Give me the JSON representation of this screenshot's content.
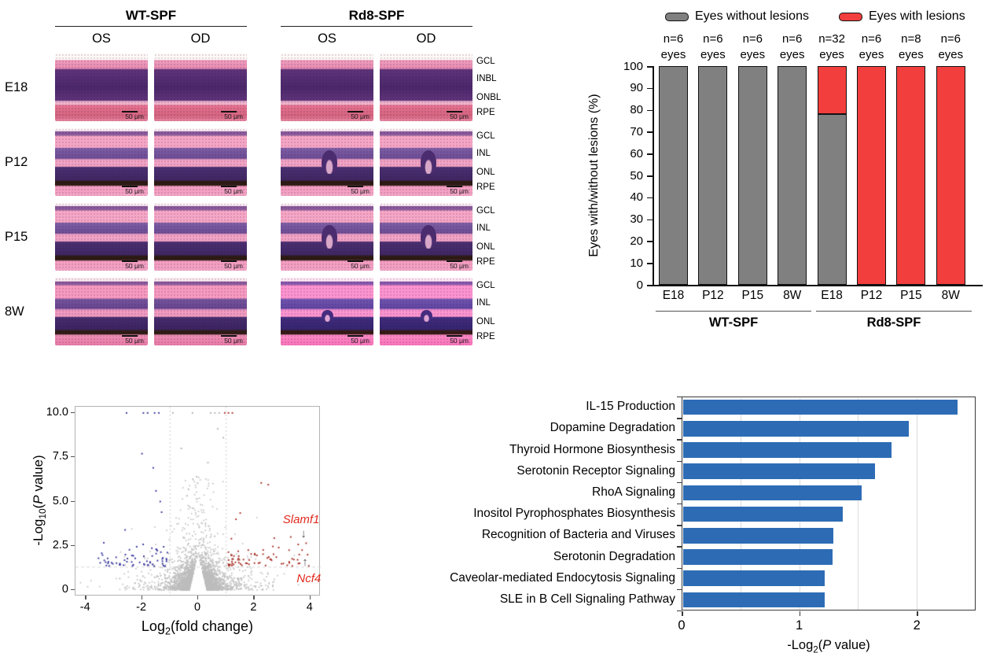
{
  "histology": {
    "groups": [
      {
        "label": "WT-SPF",
        "columns": [
          "OS",
          "OD"
        ]
      },
      {
        "label": "Rd8-SPF",
        "columns": [
          "OS",
          "OD"
        ]
      }
    ],
    "scale_bar_label": "50 μm",
    "rows": [
      {
        "label": "E18",
        "layers": [
          "GCL",
          "INBL",
          "ONBL",
          "RPE"
        ],
        "style": "e18",
        "lesions": [
          false,
          false,
          false,
          false
        ]
      },
      {
        "label": "P12",
        "layers": [
          "GCL",
          "INL",
          "ONL",
          "RPE"
        ],
        "style": "postnatal",
        "lesions": [
          false,
          false,
          true,
          true
        ]
      },
      {
        "label": "P15",
        "layers": [
          "GCL",
          "INL",
          "ONL",
          "RPE"
        ],
        "style": "postnatal",
        "lesions": [
          false,
          false,
          true,
          true
        ]
      },
      {
        "label": "8W",
        "layers": [
          "GCL",
          "INL",
          "ONL",
          "RPE"
        ],
        "style": "adult",
        "lesions": [
          false,
          false,
          true,
          true
        ]
      }
    ]
  },
  "chart_data": [
    {
      "type": "bar",
      "stacked": true,
      "title": "",
      "categories": [
        "E18",
        "P12",
        "P15",
        "8W",
        "E18",
        "P12",
        "P15",
        "8W"
      ],
      "group_labels": [
        "WT-SPF",
        "Rd8-SPF"
      ],
      "n_labels": [
        "n=6",
        "n=6",
        "n=6",
        "n=6",
        "n=32",
        "n=6",
        "n=8",
        "n=6"
      ],
      "n_unit": "eyes",
      "series": [
        {
          "name": "Eyes without lesions",
          "color": "#808080",
          "values": [
            100,
            100,
            100,
            100,
            78,
            0,
            0,
            0
          ]
        },
        {
          "name": "Eyes with lesions",
          "color": "#f33e3e",
          "values": [
            0,
            0,
            0,
            0,
            22,
            100,
            100,
            100
          ]
        }
      ],
      "ylabel": "Eyes with/without lesions (%)",
      "ylim": [
        0,
        100
      ],
      "yticks": [
        0,
        10,
        20,
        30,
        40,
        50,
        60,
        70,
        80,
        90,
        100
      ],
      "legend_position": "top"
    },
    {
      "type": "scatter",
      "subtype": "volcano",
      "xlabel_parts": {
        "pre": "Log",
        "sub": "2",
        "mid": "(fold change)",
        "it": "",
        "post": ""
      },
      "ylabel_parts": {
        "pre": "-Log",
        "sub": "10",
        "mid": "(",
        "it": "P",
        "post": " value)"
      },
      "xlim": [
        -4.37,
        4.37
      ],
      "ylim": [
        -0.35,
        10.35
      ],
      "xticks": [
        {
          "v": -4,
          "label": "-4"
        },
        {
          "v": -2,
          "label": "-2"
        },
        {
          "v": 0,
          "label": "0"
        },
        {
          "v": 2,
          "label": "2"
        },
        {
          "v": 4,
          "label": "4"
        }
      ],
      "yticks": [
        {
          "v": 0,
          "label": "0"
        },
        {
          "v": 2.5,
          "label": "2.5"
        },
        {
          "v": 5,
          "label": "5.0"
        },
        {
          "v": 7.5,
          "label": "7.5"
        },
        {
          "v": 10,
          "label": "10.0"
        }
      ],
      "threshold_lines": {
        "vertical_x": [
          -1,
          1
        ],
        "horizontal_y": 1.3
      },
      "colors": {
        "nonsignificant": "#bdbdbd",
        "down": "#32329a",
        "up": "#a52c22"
      },
      "point_counts": {
        "nonsignificant": 3600,
        "down": 62,
        "up": 68
      },
      "seed": 20,
      "down_outliers": [
        [
          -2.55,
          10
        ],
        [
          -1.95,
          10
        ],
        [
          -1.8,
          10
        ],
        [
          -1.55,
          10
        ],
        [
          -1.4,
          10
        ],
        [
          -2.0,
          7.7
        ],
        [
          -1.6,
          6.9
        ],
        [
          -1.5,
          5.6
        ],
        [
          -1.35,
          5.0
        ],
        [
          -1.3,
          4.4
        ],
        [
          -2.6,
          3.4
        ],
        [
          -3.55,
          1.8
        ]
      ],
      "up_outliers": [
        [
          0.95,
          10
        ],
        [
          1.08,
          10
        ],
        [
          1.22,
          10
        ],
        [
          2.25,
          6.05
        ],
        [
          2.5,
          5.95
        ],
        [
          1.5,
          4.35
        ],
        [
          1.35,
          4.0
        ],
        [
          3.3,
          3.0
        ],
        [
          3.85,
          2.65
        ],
        [
          3.9,
          2.0
        ]
      ],
      "gray_outliers": [
        [
          -0.9,
          10
        ],
        [
          -0.2,
          10
        ],
        [
          0.45,
          10
        ],
        [
          0.6,
          10
        ],
        [
          0.75,
          10
        ],
        [
          0.7,
          9.1
        ],
        [
          0.9,
          8.6
        ],
        [
          -0.6,
          8.0
        ],
        [
          0.35,
          7.2
        ],
        [
          -0.05,
          6.4
        ]
      ],
      "annotations": [
        {
          "text": "Slamf1",
          "point": [
            3.85,
            2.65
          ],
          "label_y": 3.95,
          "arrow": "down",
          "arrow_y": 3.1
        },
        {
          "text": "Ncf4",
          "point": [
            3.9,
            2.0
          ],
          "label_y": 0.62,
          "arrow": "up",
          "arrow_y": 1.5
        }
      ]
    },
    {
      "type": "bar",
      "orientation": "horizontal",
      "categories": [
        "IL-15 Production",
        "Dopamine Degradation",
        "Thyroid Hormone Biosynthesis",
        "Serotonin Receptor Signaling",
        "RhoA Signaling",
        "Inositol Pyrophosphates Biosynthesis",
        "Recognition of Bacteria and Viruses",
        "Serotonin Degradation",
        "Caveolar-mediated Endocytosis Signaling",
        "SLE in B Cell Signaling Pathway"
      ],
      "values": [
        2.33,
        1.92,
        1.77,
        1.63,
        1.52,
        1.36,
        1.28,
        1.27,
        1.2,
        1.2
      ],
      "bar_color": "#2d6cb5",
      "xlabel_parts": {
        "pre": "-Log",
        "sub": "2",
        "mid": "(",
        "it": "P",
        "post": " value)"
      },
      "xlim": [
        0,
        2.5
      ],
      "xticks": [
        {
          "v": 0,
          "label": "0"
        },
        {
          "v": 1,
          "label": "1"
        },
        {
          "v": 2,
          "label": "2"
        }
      ],
      "gridlines": [
        0.5,
        1,
        1.5,
        2
      ]
    }
  ]
}
